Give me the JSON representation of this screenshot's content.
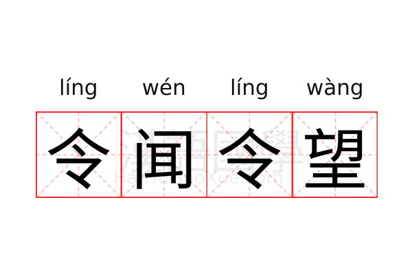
{
  "colors": {
    "border": "#ff2a2a",
    "guide": "#ffaaaa",
    "text": "#000000"
  },
  "characters": [
    {
      "char": "令",
      "pinyin": "líng"
    },
    {
      "char": "闻",
      "pinyin": "wén"
    },
    {
      "char": "令",
      "pinyin": "líng"
    },
    {
      "char": "望",
      "pinyin": "wàng"
    }
  ],
  "watermark": {
    "cn": "漢語國學",
    "en": "HanYuGuoXue.com"
  }
}
